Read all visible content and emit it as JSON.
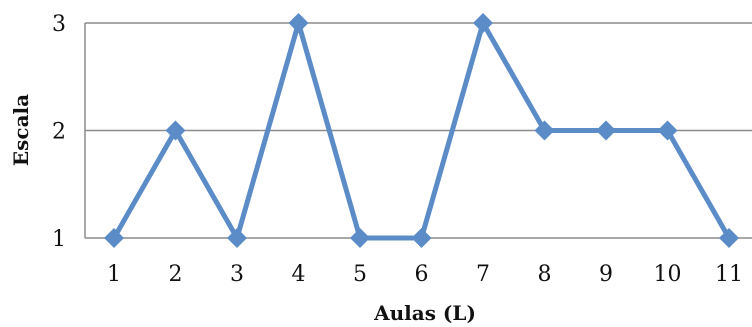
{
  "chart_data": {
    "type": "line",
    "xlabel": "Aulas (L)",
    "ylabel": "Escala",
    "categories": [
      "1",
      "2",
      "3",
      "4",
      "5",
      "6",
      "7",
      "8",
      "9",
      "10",
      "11"
    ],
    "series": [
      {
        "values": [
          1,
          2,
          1,
          3,
          1,
          1,
          3,
          2,
          2,
          2,
          1
        ]
      }
    ],
    "ylim": [
      1,
      3
    ],
    "yticks": [
      1,
      2,
      3
    ],
    "grid": "horizontal",
    "legend": "none",
    "marker": "diamond",
    "colors": {
      "series": "#5b8cc7",
      "grid": "#8c8c8c",
      "axis": "#8c8c8c"
    }
  }
}
